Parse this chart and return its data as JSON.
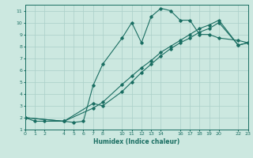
{
  "xlabel": "Humidex (Indice chaleur)",
  "bg_color": "#cce8e0",
  "grid_color": "#aacfc8",
  "line_color": "#1a6e62",
  "line1_x": [
    0,
    1,
    2,
    4,
    5,
    6,
    7,
    8,
    10,
    11,
    12,
    13,
    14,
    15,
    16,
    17,
    18,
    19,
    20,
    22,
    23
  ],
  "line1_y": [
    2,
    1.7,
    1.7,
    1.7,
    1.6,
    1.7,
    4.7,
    6.5,
    8.7,
    10.0,
    8.3,
    10.5,
    11.2,
    11.0,
    10.2,
    10.2,
    9.0,
    9.0,
    8.7,
    8.5,
    8.3
  ],
  "line2_x": [
    0,
    4,
    7,
    8,
    10,
    11,
    12,
    13,
    14,
    15,
    16,
    17,
    18,
    19,
    20,
    22,
    23
  ],
  "line2_y": [
    2,
    1.7,
    3.2,
    3.0,
    4.2,
    5.0,
    5.8,
    6.5,
    7.2,
    7.8,
    8.3,
    8.7,
    9.2,
    9.5,
    10.0,
    8.1,
    8.3
  ],
  "line3_x": [
    0,
    4,
    7,
    8,
    10,
    11,
    12,
    13,
    14,
    15,
    16,
    17,
    18,
    19,
    20,
    22,
    23
  ],
  "line3_y": [
    2,
    1.7,
    2.8,
    3.3,
    4.8,
    5.5,
    6.2,
    6.8,
    7.5,
    8.0,
    8.5,
    9.0,
    9.5,
    9.8,
    10.2,
    8.1,
    8.3
  ],
  "xlim": [
    0,
    23
  ],
  "ylim": [
    1,
    11.5
  ],
  "xticks": [
    0,
    1,
    2,
    4,
    5,
    6,
    7,
    8,
    10,
    11,
    12,
    13,
    14,
    16,
    17,
    18,
    19,
    20,
    22,
    23
  ],
  "yticks": [
    1,
    2,
    3,
    4,
    5,
    6,
    7,
    8,
    9,
    10,
    11
  ]
}
